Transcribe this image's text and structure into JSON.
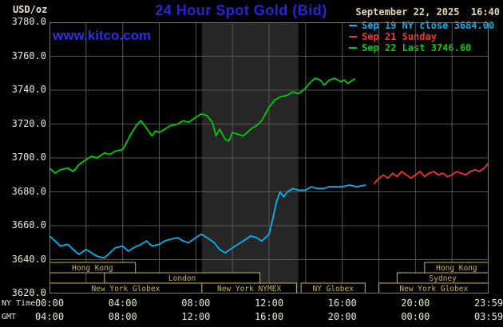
{
  "colors": {
    "background": "#000000",
    "title_blue": "#2626d8",
    "watermark_blue": "#2e2ee8",
    "axis_text": "#e8e6cf",
    "grid": "#545454",
    "plot_border": "#7a7a7a",
    "session_tan": "#c6b35e",
    "nymex_band": "#262626",
    "series_sep19_cyan": "#00b4f0",
    "series_sep21_red": "#f03434",
    "series_sep22_green": "#00cc00"
  },
  "header": {
    "units_label": "USD/oz",
    "title": "24 Hour Spot Gold (Bid)",
    "datetime": "September 22, 2025  16:40",
    "watermark": "www.kitco.com"
  },
  "legend": {
    "items": [
      {
        "key": "sep19",
        "label": "Sep 19 NY close 3684.00",
        "color": "#00b4f0"
      },
      {
        "key": "sep21",
        "label": "Sep 21 Sunday",
        "color": "#f03434"
      },
      {
        "key": "sep22",
        "label": "Sep 22 Last 3746.60",
        "color": "#00cc00"
      }
    ]
  },
  "axes": {
    "ny_caption": "NY Time",
    "gmt_caption": "GMT",
    "ny_ticks": [
      {
        "hour": 0,
        "label": "00:00"
      },
      {
        "hour": 4,
        "label": "04:00"
      },
      {
        "hour": 8,
        "label": "08:00"
      },
      {
        "hour": 12,
        "label": "12:00"
      },
      {
        "hour": 16,
        "label": "16:00"
      },
      {
        "hour": 20,
        "label": "20:00"
      },
      {
        "hour": 24,
        "label": "23:59"
      }
    ],
    "gmt_ticks": [
      {
        "hour": 0,
        "label": "04:00"
      },
      {
        "hour": 4,
        "label": "08:00"
      },
      {
        "hour": 8,
        "label": "12:00"
      },
      {
        "hour": 12,
        "label": "16:00"
      },
      {
        "hour": 16,
        "label": "20:00"
      },
      {
        "hour": 20,
        "label": "00:00"
      },
      {
        "hour": 24,
        "label": "03:59"
      }
    ]
  },
  "chart_data": {
    "type": "line",
    "title": "24 Hour Spot Gold (Bid)",
    "ylabel": "USD/oz",
    "ylim": [
      3620,
      3780
    ],
    "ytick_step": 20,
    "xlim_hours": [
      0,
      24
    ],
    "x_gridline_step_hours": 2,
    "grid": true,
    "legend_position": "top-right",
    "nymex_band_hours": [
      8.33,
      13.6
    ],
    "series": [
      {
        "key": "sep19",
        "name": "Sep 19 NY close 3684.00",
        "close_value": 3684.0,
        "color": "#00b4f0",
        "points": [
          [
            0,
            3654
          ],
          [
            0.3,
            3651
          ],
          [
            0.6,
            3648
          ],
          [
            1,
            3649
          ],
          [
            1.3,
            3646
          ],
          [
            1.6,
            3643
          ],
          [
            2,
            3646
          ],
          [
            2.3,
            3644
          ],
          [
            2.6,
            3642
          ],
          [
            3,
            3641
          ],
          [
            3.3,
            3644
          ],
          [
            3.6,
            3647
          ],
          [
            4,
            3648
          ],
          [
            4.3,
            3645
          ],
          [
            4.6,
            3647
          ],
          [
            5,
            3649
          ],
          [
            5.3,
            3651
          ],
          [
            5.6,
            3648
          ],
          [
            6,
            3649
          ],
          [
            6.3,
            3651
          ],
          [
            6.6,
            3652
          ],
          [
            7,
            3653
          ],
          [
            7.3,
            3651
          ],
          [
            7.6,
            3650
          ],
          [
            8,
            3653
          ],
          [
            8.3,
            3655
          ],
          [
            8.6,
            3653
          ],
          [
            9,
            3650
          ],
          [
            9.3,
            3646
          ],
          [
            9.6,
            3644
          ],
          [
            10,
            3647
          ],
          [
            10.3,
            3649
          ],
          [
            10.6,
            3651
          ],
          [
            11,
            3654
          ],
          [
            11.3,
            3653
          ],
          [
            11.6,
            3651
          ],
          [
            12,
            3655
          ],
          [
            12.2,
            3664
          ],
          [
            12.4,
            3674
          ],
          [
            12.6,
            3680
          ],
          [
            12.8,
            3677
          ],
          [
            13,
            3680
          ],
          [
            13.3,
            3682
          ],
          [
            13.6,
            3681
          ],
          [
            14,
            3681
          ],
          [
            14.3,
            3683
          ],
          [
            14.6,
            3682
          ],
          [
            15,
            3682
          ],
          [
            15.3,
            3683
          ],
          [
            15.6,
            3683
          ],
          [
            16,
            3683
          ],
          [
            16.4,
            3684
          ],
          [
            16.8,
            3683
          ],
          [
            17.25,
            3684
          ]
        ]
      },
      {
        "key": "sep21",
        "name": "Sep 21 Sunday",
        "color": "#f03434",
        "points": [
          [
            17.75,
            3685
          ],
          [
            18,
            3688
          ],
          [
            18.25,
            3690
          ],
          [
            18.5,
            3688
          ],
          [
            18.75,
            3691
          ],
          [
            19,
            3689
          ],
          [
            19.25,
            3692
          ],
          [
            19.5,
            3690
          ],
          [
            19.75,
            3688
          ],
          [
            20,
            3690
          ],
          [
            20.25,
            3692
          ],
          [
            20.5,
            3689
          ],
          [
            20.75,
            3691
          ],
          [
            21,
            3692
          ],
          [
            21.25,
            3690
          ],
          [
            21.5,
            3691
          ],
          [
            21.75,
            3689
          ],
          [
            22,
            3690
          ],
          [
            22.25,
            3692
          ],
          [
            22.5,
            3691
          ],
          [
            22.75,
            3690
          ],
          [
            23,
            3692
          ],
          [
            23.25,
            3693
          ],
          [
            23.5,
            3692
          ],
          [
            23.75,
            3694
          ],
          [
            24,
            3697
          ]
        ]
      },
      {
        "key": "sep22",
        "name": "Sep 22 Last 3746.60",
        "last_value": 3746.6,
        "color": "#00cc00",
        "points": [
          [
            0,
            3694
          ],
          [
            0.3,
            3691
          ],
          [
            0.6,
            3693
          ],
          [
            1,
            3694
          ],
          [
            1.3,
            3692
          ],
          [
            1.6,
            3696
          ],
          [
            2,
            3699
          ],
          [
            2.3,
            3701
          ],
          [
            2.6,
            3700
          ],
          [
            3,
            3703
          ],
          [
            3.3,
            3702
          ],
          [
            3.6,
            3704
          ],
          [
            4,
            3705
          ],
          [
            4.2,
            3709
          ],
          [
            4.5,
            3715
          ],
          [
            4.8,
            3720
          ],
          [
            5,
            3722
          ],
          [
            5.2,
            3719
          ],
          [
            5.4,
            3716
          ],
          [
            5.6,
            3713
          ],
          [
            5.8,
            3716
          ],
          [
            6,
            3715
          ],
          [
            6.3,
            3717
          ],
          [
            6.6,
            3719
          ],
          [
            7,
            3720
          ],
          [
            7.3,
            3722
          ],
          [
            7.6,
            3721
          ],
          [
            8,
            3724
          ],
          [
            8.3,
            3726
          ],
          [
            8.6,
            3725
          ],
          [
            8.9,
            3721
          ],
          [
            9.1,
            3713
          ],
          [
            9.3,
            3717
          ],
          [
            9.6,
            3711
          ],
          [
            9.8,
            3710
          ],
          [
            10,
            3715
          ],
          [
            10.3,
            3714
          ],
          [
            10.6,
            3713
          ],
          [
            11,
            3717
          ],
          [
            11.3,
            3719
          ],
          [
            11.6,
            3722
          ],
          [
            11.8,
            3726
          ],
          [
            12,
            3730
          ],
          [
            12.3,
            3734
          ],
          [
            12.6,
            3736
          ],
          [
            13,
            3737
          ],
          [
            13.3,
            3739
          ],
          [
            13.6,
            3738
          ],
          [
            14,
            3741
          ],
          [
            14.2,
            3744
          ],
          [
            14.5,
            3747
          ],
          [
            14.8,
            3746
          ],
          [
            15,
            3743
          ],
          [
            15.3,
            3746
          ],
          [
            15.6,
            3747
          ],
          [
            15.9,
            3745
          ],
          [
            16.1,
            3746
          ],
          [
            16.3,
            3744
          ],
          [
            16.67,
            3746.6
          ]
        ]
      }
    ],
    "sessions": [
      {
        "row": 0,
        "label": "Hong Kong",
        "start_hour": 0,
        "end_hour": 4.7
      },
      {
        "row": 0,
        "label": "Hong Kong",
        "start_hour": 20.5,
        "end_hour": 24
      },
      {
        "row": 1,
        "label": "London",
        "start_hour": 3.0,
        "end_hour": 11.5
      },
      {
        "row": 1,
        "label": "Sydney",
        "start_hour": 19.0,
        "end_hour": 24
      },
      {
        "row": 2,
        "label": "New York Globex",
        "start_hour": 0,
        "end_hour": 8.33
      },
      {
        "row": 2,
        "label": "New York NYMEX",
        "start_hour": 8.33,
        "end_hour": 13.5
      },
      {
        "row": 2,
        "label": "NY Globex",
        "start_hour": 13.75,
        "end_hour": 17.25
      },
      {
        "row": 2,
        "label": "New York Globex",
        "start_hour": 18.0,
        "end_hour": 24
      }
    ]
  }
}
